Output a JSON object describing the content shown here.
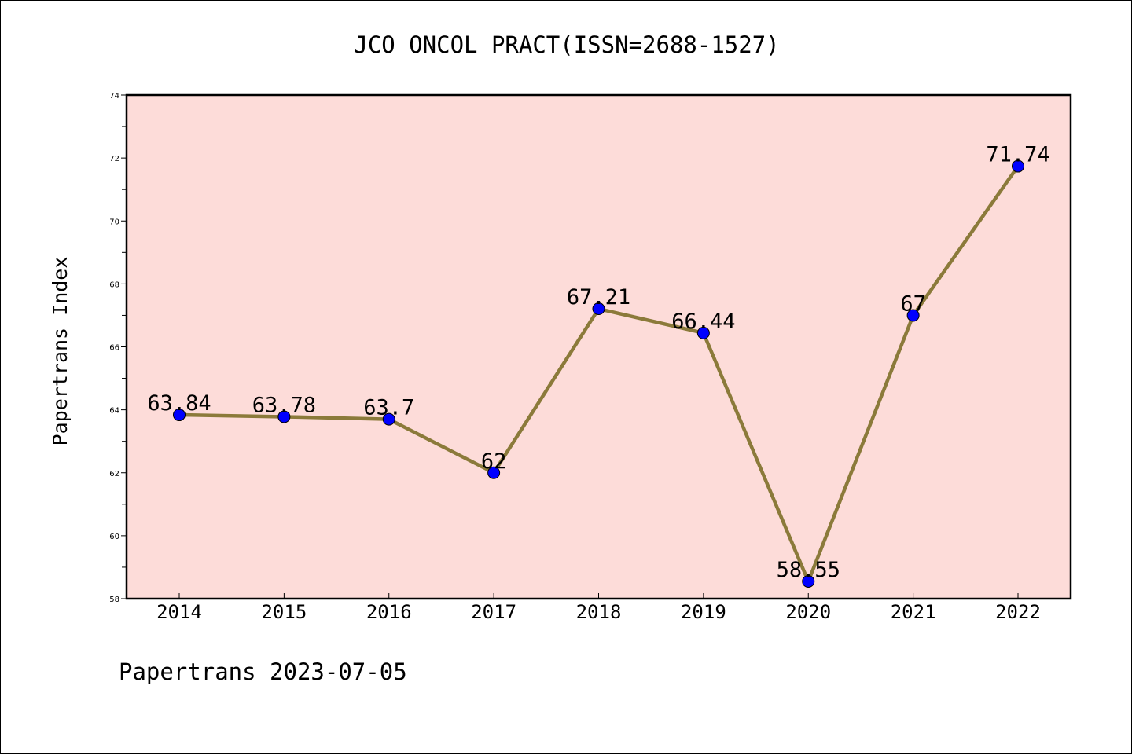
{
  "chart_data": {
    "type": "line",
    "title": "JCO ONCOL PRACT(ISSN=2688-1527)",
    "ylabel": "Papertrans Index",
    "xlabel": "",
    "categories": [
      "2014",
      "2015",
      "2016",
      "2017",
      "2018",
      "2019",
      "2020",
      "2021",
      "2022"
    ],
    "values": [
      63.84,
      63.78,
      63.7,
      62,
      67.21,
      66.44,
      58.55,
      67,
      71.74
    ],
    "data_labels": [
      "63.84",
      "63.78",
      "63.7",
      "62",
      "67.21",
      "66.44",
      "58.55",
      "67",
      "71.74"
    ],
    "ylim": [
      58,
      74
    ],
    "yticks": [
      58,
      60,
      62,
      64,
      66,
      68,
      70,
      72,
      74
    ],
    "grid": false,
    "colors": {
      "plot_background": "#fddcd9",
      "line": "#8b7a3a",
      "marker": "#0000ff"
    }
  },
  "footer": {
    "text": "Papertrans 2023-07-05"
  }
}
